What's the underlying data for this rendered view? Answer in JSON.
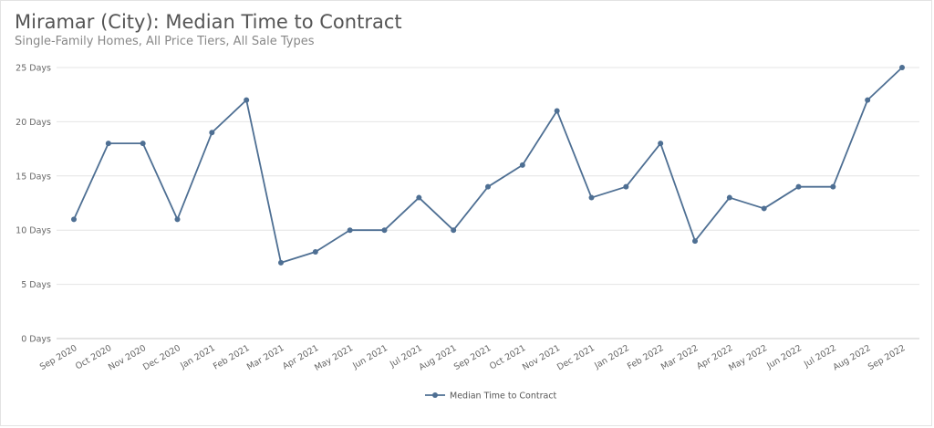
{
  "header": {
    "title": "Miramar (City): Median Time to Contract",
    "subtitle": "Single-Family Homes, All Price Tiers, All Sale Types"
  },
  "chart_data": {
    "type": "line",
    "categories": [
      "Sep 2020",
      "Oct 2020",
      "Nov 2020",
      "Dec 2020",
      "Jan 2021",
      "Feb 2021",
      "Mar 2021",
      "Apr 2021",
      "May 2021",
      "Jun 2021",
      "Jul 2021",
      "Aug 2021",
      "Sep 2021",
      "Oct 2021",
      "Nov 2021",
      "Dec 2021",
      "Jan 2022",
      "Feb 2022",
      "Mar 2022",
      "Apr 2022",
      "May 2022",
      "Jun 2022",
      "Jul 2022",
      "Aug 2022",
      "Sep 2022"
    ],
    "series": [
      {
        "name": "Median Time to Contract",
        "values": [
          11,
          18,
          18,
          11,
          19,
          22,
          7,
          8,
          10,
          10,
          13,
          10,
          14,
          16,
          21,
          13,
          14,
          18,
          9,
          13,
          12,
          14,
          14,
          22,
          25
        ],
        "color": "#4e6f93"
      }
    ],
    "y_ticks": [
      0,
      5,
      10,
      15,
      20,
      25
    ],
    "y_tick_suffix": " Days",
    "ylim": [
      0,
      25
    ],
    "grid": true,
    "legend_position": "bottom-center"
  }
}
